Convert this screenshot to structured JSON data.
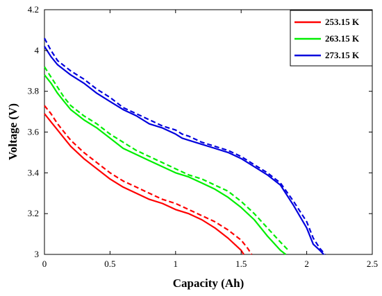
{
  "chart_data": {
    "type": "line",
    "xlabel": "Capacity (Ah)",
    "ylabel": "Voltage (V)",
    "xlim": [
      0,
      2.5
    ],
    "ylim": [
      3,
      4.2
    ],
    "xticks": [
      "0",
      "0.5",
      "1",
      "1.5",
      "2",
      "2.5"
    ],
    "yticks": [
      "3",
      "3.2",
      "3.4",
      "3.6",
      "3.8",
      "4",
      "4.2"
    ],
    "grid": false,
    "legend": "top-right",
    "series": [
      {
        "name": "253.15 K",
        "color": "#ff0000",
        "solid": {
          "x": [
            0,
            0.05,
            0.1,
            0.15,
            0.2,
            0.3,
            0.4,
            0.5,
            0.6,
            0.7,
            0.8,
            0.9,
            1.0,
            1.1,
            1.2,
            1.3,
            1.4,
            1.45,
            1.5,
            1.52
          ],
          "y": [
            3.69,
            3.65,
            3.61,
            3.57,
            3.53,
            3.47,
            3.42,
            3.37,
            3.33,
            3.3,
            3.27,
            3.25,
            3.22,
            3.2,
            3.17,
            3.13,
            3.08,
            3.05,
            3.02,
            3.0
          ]
        },
        "dashed": {
          "x": [
            0,
            0.05,
            0.1,
            0.15,
            0.2,
            0.3,
            0.4,
            0.5,
            0.6,
            0.7,
            0.8,
            0.9,
            1.0,
            1.1,
            1.2,
            1.3,
            1.4,
            1.5,
            1.55,
            1.58
          ],
          "y": [
            3.73,
            3.69,
            3.64,
            3.6,
            3.56,
            3.5,
            3.45,
            3.4,
            3.36,
            3.33,
            3.3,
            3.27,
            3.25,
            3.22,
            3.19,
            3.16,
            3.12,
            3.07,
            3.03,
            3.0
          ]
        }
      },
      {
        "name": "263.15 K",
        "color": "#00ee00",
        "solid": {
          "x": [
            0,
            0.05,
            0.1,
            0.15,
            0.2,
            0.3,
            0.4,
            0.5,
            0.6,
            0.7,
            0.8,
            0.9,
            1.0,
            1.1,
            1.2,
            1.3,
            1.4,
            1.5,
            1.6,
            1.7,
            1.8,
            1.84
          ],
          "y": [
            3.88,
            3.84,
            3.79,
            3.75,
            3.71,
            3.66,
            3.62,
            3.57,
            3.52,
            3.49,
            3.46,
            3.43,
            3.4,
            3.38,
            3.35,
            3.32,
            3.28,
            3.23,
            3.17,
            3.09,
            3.02,
            3.0
          ]
        },
        "dashed": {
          "x": [
            0,
            0.05,
            0.1,
            0.15,
            0.2,
            0.3,
            0.4,
            0.5,
            0.6,
            0.7,
            0.8,
            0.9,
            1.0,
            1.1,
            1.2,
            1.3,
            1.4,
            1.5,
            1.6,
            1.7,
            1.8,
            1.86
          ],
          "y": [
            3.92,
            3.87,
            3.82,
            3.77,
            3.73,
            3.68,
            3.64,
            3.59,
            3.55,
            3.51,
            3.48,
            3.45,
            3.42,
            3.39,
            3.37,
            3.34,
            3.31,
            3.26,
            3.2,
            3.13,
            3.06,
            3.02
          ]
        }
      },
      {
        "name": "273.15 K",
        "color": "#0000dd",
        "solid": {
          "x": [
            0,
            0.05,
            0.1,
            0.2,
            0.3,
            0.4,
            0.5,
            0.6,
            0.7,
            0.8,
            0.9,
            1.0,
            1.05,
            1.1,
            1.2,
            1.3,
            1.4,
            1.5,
            1.6,
            1.7,
            1.8,
            1.9,
            2.0,
            2.05,
            2.1,
            2.13
          ],
          "y": [
            4.02,
            3.97,
            3.93,
            3.88,
            3.84,
            3.79,
            3.75,
            3.71,
            3.68,
            3.64,
            3.62,
            3.59,
            3.57,
            3.56,
            3.54,
            3.52,
            3.5,
            3.47,
            3.43,
            3.39,
            3.34,
            3.24,
            3.13,
            3.05,
            3.02,
            3.0
          ]
        },
        "dashed": {
          "x": [
            0,
            0.05,
            0.1,
            0.2,
            0.3,
            0.4,
            0.5,
            0.6,
            0.7,
            0.8,
            0.9,
            1.0,
            1.05,
            1.1,
            1.2,
            1.3,
            1.4,
            1.5,
            1.6,
            1.7,
            1.8,
            1.9,
            2.0,
            2.05,
            2.1,
            2.14
          ],
          "y": [
            4.06,
            4.0,
            3.95,
            3.9,
            3.86,
            3.81,
            3.77,
            3.72,
            3.69,
            3.66,
            3.63,
            3.61,
            3.59,
            3.58,
            3.55,
            3.53,
            3.51,
            3.48,
            3.44,
            3.4,
            3.35,
            3.26,
            3.16,
            3.08,
            3.03,
            3.0
          ]
        }
      }
    ]
  }
}
